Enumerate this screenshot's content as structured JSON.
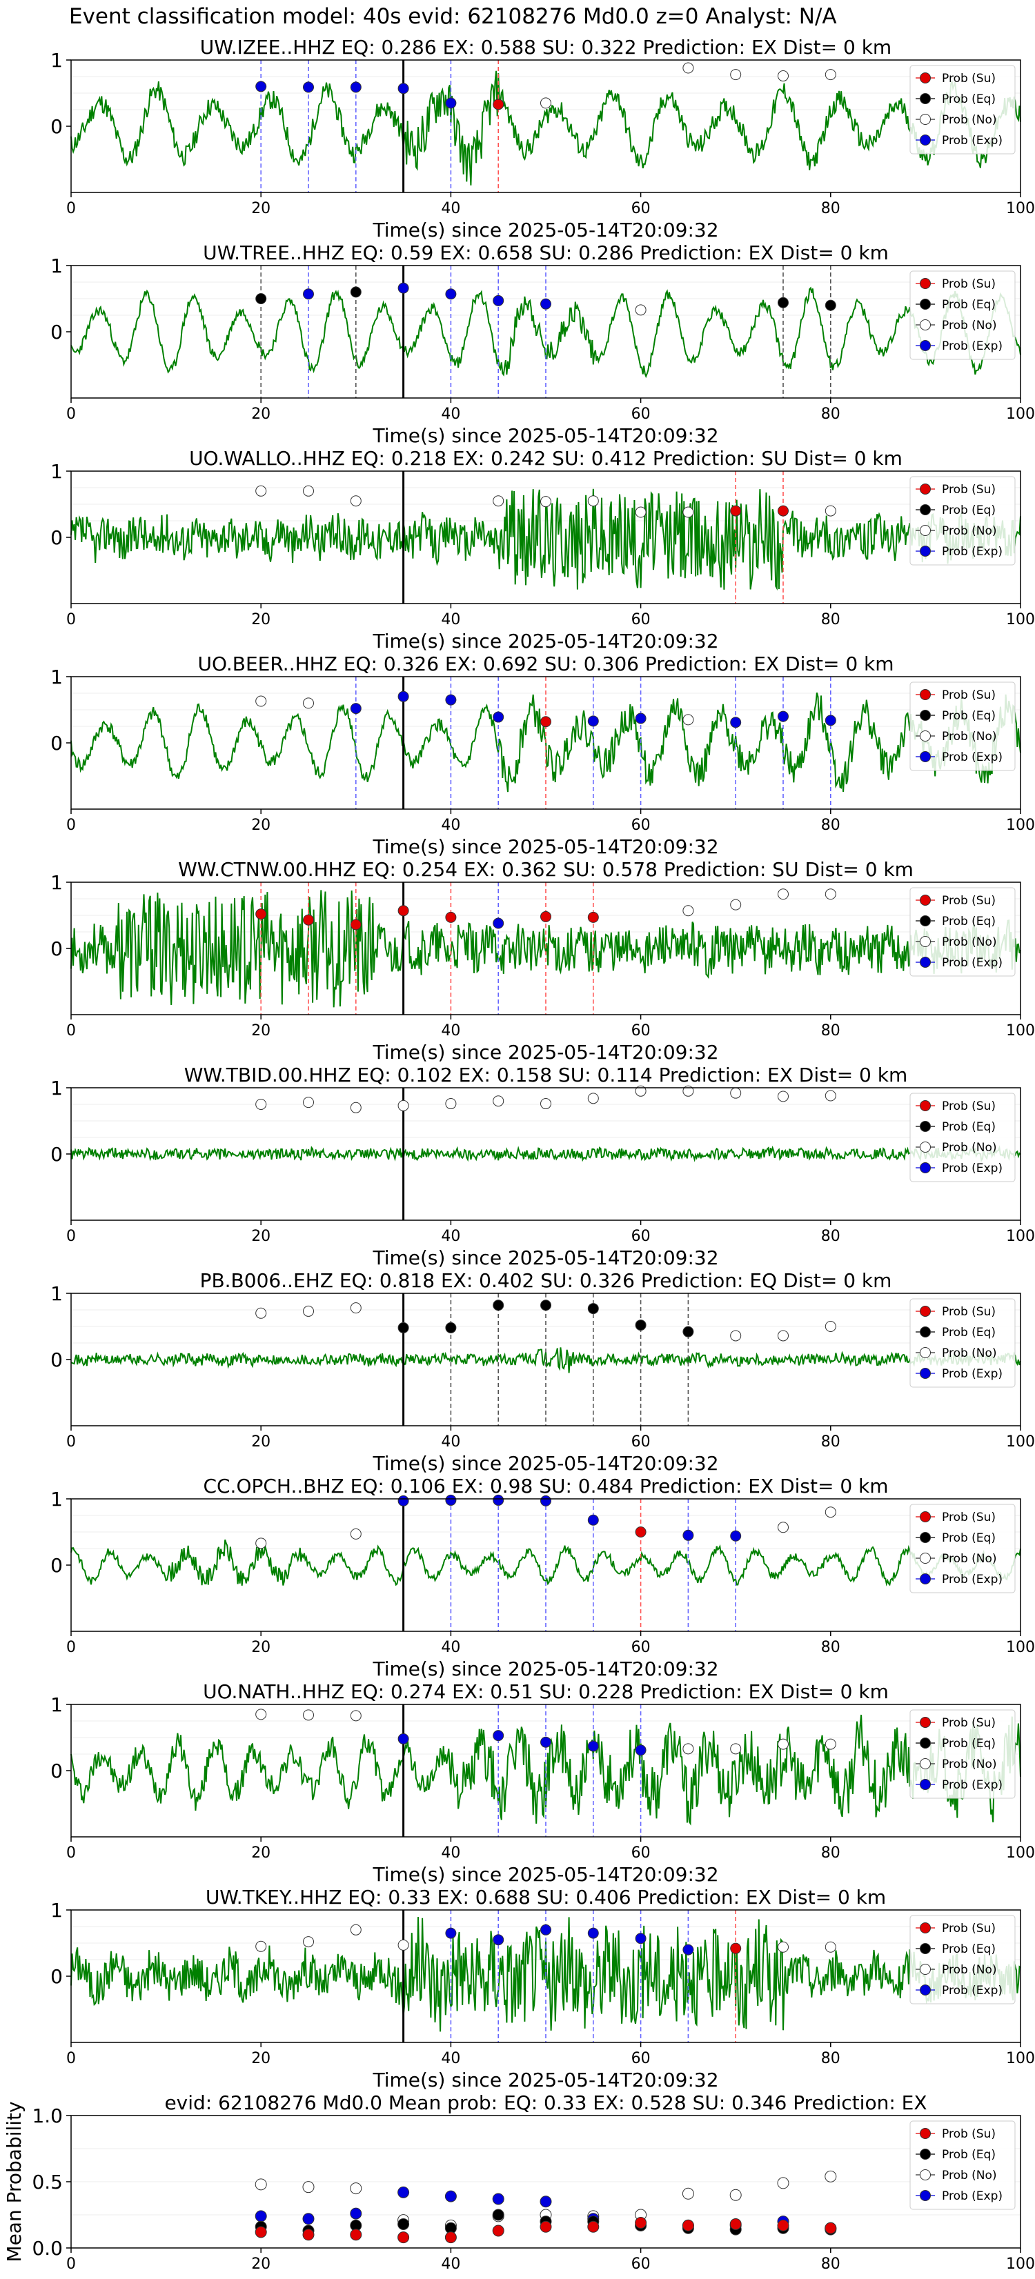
{
  "figure_title": "Event classification model: 40s evid: 62108276 Md0.0 z=0 Analyst: N/A",
  "legend_labels": [
    "Prob (Su)",
    "Prob (Eq)",
    "Prob (No)",
    "Prob (Exp)"
  ],
  "colors": {
    "trace": "#008000",
    "su": "#e00000",
    "eq": "#000000",
    "no": "#ffffff",
    "exp": "#0000dd"
  },
  "chart_data": [
    {
      "type": "line",
      "title": "UW.IZEE..HHZ   EQ: 0.286  EX: 0.588  SU: 0.322   Prediction: EX    Dist= 0 km",
      "xlabel": "Time(s) since 2025-05-14T20:09:32",
      "xlim": [
        0,
        100
      ],
      "ylim": [
        -1,
        1
      ],
      "xticks": [
        0,
        20,
        40,
        60,
        80,
        100
      ],
      "yticks": [
        0,
        1
      ],
      "onset": 35,
      "trace": {
        "seed": 11,
        "amp": 0.55,
        "noise": 0.15,
        "burst": [
          35,
          45
        ],
        "period": 6
      },
      "markers": [
        {
          "x": 20,
          "y": 0.6,
          "cls": "exp"
        },
        {
          "x": 25,
          "y": 0.59,
          "cls": "exp"
        },
        {
          "x": 30,
          "y": 0.59,
          "cls": "exp"
        },
        {
          "x": 35,
          "y": 0.57,
          "cls": "exp"
        },
        {
          "x": 40,
          "y": 0.35,
          "cls": "exp"
        },
        {
          "x": 45,
          "y": 0.33,
          "cls": "su"
        },
        {
          "x": 50,
          "y": 0.35,
          "cls": "no"
        },
        {
          "x": 65,
          "y": 0.88,
          "cls": "no"
        },
        {
          "x": 70,
          "y": 0.78,
          "cls": "no"
        },
        {
          "x": 75,
          "y": 0.76,
          "cls": "no"
        },
        {
          "x": 80,
          "y": 0.78,
          "cls": "no"
        }
      ]
    },
    {
      "type": "line",
      "title": "UW.TREE..HHZ   EQ: 0.59  EX: 0.658  SU: 0.286   Prediction: EX    Dist= 0 km",
      "xlabel": "Time(s) since 2025-05-14T20:09:32",
      "xlim": [
        0,
        100
      ],
      "ylim": [
        -1,
        1
      ],
      "xticks": [
        0,
        20,
        40,
        60,
        80,
        100
      ],
      "yticks": [
        0,
        1
      ],
      "onset": 35,
      "trace": {
        "seed": 23,
        "amp": 0.6,
        "noise": 0.08,
        "burst": [
          45,
          55
        ],
        "period": 5
      },
      "markers": [
        {
          "x": 20,
          "y": 0.5,
          "cls": "eq"
        },
        {
          "x": 25,
          "y": 0.57,
          "cls": "exp"
        },
        {
          "x": 30,
          "y": 0.6,
          "cls": "eq"
        },
        {
          "x": 35,
          "y": 0.66,
          "cls": "exp"
        },
        {
          "x": 40,
          "y": 0.57,
          "cls": "exp"
        },
        {
          "x": 45,
          "y": 0.47,
          "cls": "exp"
        },
        {
          "x": 50,
          "y": 0.42,
          "cls": "exp"
        },
        {
          "x": 60,
          "y": 0.33,
          "cls": "no"
        },
        {
          "x": 75,
          "y": 0.44,
          "cls": "eq"
        },
        {
          "x": 80,
          "y": 0.4,
          "cls": "eq"
        }
      ]
    },
    {
      "type": "line",
      "title": "UO.WALLO..HHZ   EQ: 0.218  EX: 0.242  SU: 0.412   Prediction: SU    Dist= 0 km",
      "xlabel": "Time(s) since 2025-05-14T20:09:32",
      "xlim": [
        0,
        100
      ],
      "ylim": [
        -1,
        1
      ],
      "xticks": [
        0,
        20,
        40,
        60,
        80,
        100
      ],
      "yticks": [
        0,
        1
      ],
      "onset": 35,
      "trace": {
        "seed": 37,
        "amp": 0.12,
        "noise": 0.3,
        "burst": [
          45,
          75
        ],
        "period": 3
      },
      "markers": [
        {
          "x": 20,
          "y": 0.7,
          "cls": "no"
        },
        {
          "x": 25,
          "y": 0.7,
          "cls": "no"
        },
        {
          "x": 30,
          "y": 0.55,
          "cls": "no"
        },
        {
          "x": 45,
          "y": 0.55,
          "cls": "no"
        },
        {
          "x": 50,
          "y": 0.54,
          "cls": "no"
        },
        {
          "x": 55,
          "y": 0.55,
          "cls": "no"
        },
        {
          "x": 60,
          "y": 0.38,
          "cls": "no"
        },
        {
          "x": 65,
          "y": 0.38,
          "cls": "no"
        },
        {
          "x": 70,
          "y": 0.4,
          "cls": "su"
        },
        {
          "x": 75,
          "y": 0.4,
          "cls": "su"
        },
        {
          "x": 80,
          "y": 0.4,
          "cls": "no"
        }
      ]
    },
    {
      "type": "line",
      "title": "UO.BEER..HHZ   EQ: 0.326  EX: 0.692  SU: 0.306   Prediction: EX    Dist= 0 km",
      "xlabel": "Time(s) since 2025-05-14T20:09:32",
      "xlim": [
        0,
        100
      ],
      "ylim": [
        -1,
        1
      ],
      "xticks": [
        0,
        20,
        40,
        60,
        80,
        100
      ],
      "yticks": [
        0,
        1
      ],
      "onset": 35,
      "trace": {
        "seed": 41,
        "amp": 0.55,
        "noise": 0.1,
        "burst": [
          45,
          100
        ],
        "period": 5
      },
      "markers": [
        {
          "x": 20,
          "y": 0.63,
          "cls": "no"
        },
        {
          "x": 25,
          "y": 0.6,
          "cls": "no"
        },
        {
          "x": 30,
          "y": 0.52,
          "cls": "exp"
        },
        {
          "x": 35,
          "y": 0.7,
          "cls": "exp"
        },
        {
          "x": 40,
          "y": 0.65,
          "cls": "exp"
        },
        {
          "x": 45,
          "y": 0.39,
          "cls": "exp"
        },
        {
          "x": 50,
          "y": 0.32,
          "cls": "su"
        },
        {
          "x": 55,
          "y": 0.33,
          "cls": "exp"
        },
        {
          "x": 60,
          "y": 0.37,
          "cls": "exp"
        },
        {
          "x": 65,
          "y": 0.35,
          "cls": "no"
        },
        {
          "x": 70,
          "y": 0.31,
          "cls": "exp"
        },
        {
          "x": 75,
          "y": 0.4,
          "cls": "exp"
        },
        {
          "x": 80,
          "y": 0.34,
          "cls": "exp"
        }
      ]
    },
    {
      "type": "line",
      "title": "WW.CTNW.00.HHZ   EQ: 0.254  EX: 0.362  SU: 0.578   Prediction: SU    Dist= 0 km",
      "xlabel": "Time(s) since 2025-05-14T20:09:32",
      "xlim": [
        0,
        100
      ],
      "ylim": [
        -1,
        1
      ],
      "xticks": [
        0,
        20,
        40,
        60,
        80,
        100
      ],
      "yticks": [
        0,
        1
      ],
      "onset": 35,
      "trace": {
        "seed": 53,
        "amp": 0.1,
        "noise": 0.35,
        "burst": [
          5,
          32
        ],
        "period": 3
      },
      "markers": [
        {
          "x": 20,
          "y": 0.52,
          "cls": "su"
        },
        {
          "x": 25,
          "y": 0.43,
          "cls": "su"
        },
        {
          "x": 30,
          "y": 0.36,
          "cls": "su"
        },
        {
          "x": 35,
          "y": 0.57,
          "cls": "su"
        },
        {
          "x": 40,
          "y": 0.47,
          "cls": "su"
        },
        {
          "x": 45,
          "y": 0.38,
          "cls": "exp"
        },
        {
          "x": 50,
          "y": 0.48,
          "cls": "su"
        },
        {
          "x": 55,
          "y": 0.47,
          "cls": "su"
        },
        {
          "x": 65,
          "y": 0.57,
          "cls": "no"
        },
        {
          "x": 70,
          "y": 0.66,
          "cls": "no"
        },
        {
          "x": 75,
          "y": 0.82,
          "cls": "no"
        },
        {
          "x": 80,
          "y": 0.82,
          "cls": "no"
        }
      ]
    },
    {
      "type": "line",
      "title": "WW.TBID.00.HHZ   EQ: 0.102  EX: 0.158  SU: 0.114   Prediction: EX    Dist= 0 km",
      "xlabel": "Time(s) since 2025-05-14T20:09:32",
      "xlim": [
        0,
        100
      ],
      "ylim": [
        -1,
        1
      ],
      "xticks": [
        0,
        20,
        40,
        60,
        80,
        100
      ],
      "yticks": [
        0,
        1
      ],
      "onset": 35,
      "trace": {
        "seed": 61,
        "amp": 0.02,
        "noise": 0.08,
        "burst": [
          0,
          0
        ],
        "period": 3
      },
      "markers": [
        {
          "x": 20,
          "y": 0.75,
          "cls": "no"
        },
        {
          "x": 25,
          "y": 0.78,
          "cls": "no"
        },
        {
          "x": 30,
          "y": 0.7,
          "cls": "no"
        },
        {
          "x": 35,
          "y": 0.73,
          "cls": "no"
        },
        {
          "x": 40,
          "y": 0.76,
          "cls": "no"
        },
        {
          "x": 45,
          "y": 0.8,
          "cls": "no"
        },
        {
          "x": 50,
          "y": 0.76,
          "cls": "no"
        },
        {
          "x": 55,
          "y": 0.84,
          "cls": "no"
        },
        {
          "x": 60,
          "y": 0.95,
          "cls": "no"
        },
        {
          "x": 65,
          "y": 0.95,
          "cls": "no"
        },
        {
          "x": 70,
          "y": 0.92,
          "cls": "no"
        },
        {
          "x": 75,
          "y": 0.87,
          "cls": "no"
        },
        {
          "x": 80,
          "y": 0.88,
          "cls": "no"
        }
      ]
    },
    {
      "type": "line",
      "title": "PB.B006..EHZ   EQ: 0.818  EX: 0.402  SU: 0.326   Prediction: EQ    Dist= 0 km",
      "xlabel": "Time(s) since 2025-05-14T20:09:32",
      "xlim": [
        0,
        100
      ],
      "ylim": [
        -1,
        1
      ],
      "xticks": [
        0,
        20,
        40,
        60,
        80,
        100
      ],
      "yticks": [
        0,
        1
      ],
      "onset": 35,
      "trace": {
        "seed": 71,
        "amp": 0.03,
        "noise": 0.08,
        "burst": [
          49,
          53
        ],
        "period": 3
      },
      "markers": [
        {
          "x": 20,
          "y": 0.7,
          "cls": "no"
        },
        {
          "x": 25,
          "y": 0.73,
          "cls": "no"
        },
        {
          "x": 30,
          "y": 0.78,
          "cls": "no"
        },
        {
          "x": 35,
          "y": 0.48,
          "cls": "eq"
        },
        {
          "x": 40,
          "y": 0.48,
          "cls": "eq"
        },
        {
          "x": 45,
          "y": 0.82,
          "cls": "eq"
        },
        {
          "x": 50,
          "y": 0.82,
          "cls": "eq"
        },
        {
          "x": 55,
          "y": 0.77,
          "cls": "eq"
        },
        {
          "x": 60,
          "y": 0.52,
          "cls": "eq"
        },
        {
          "x": 65,
          "y": 0.42,
          "cls": "eq"
        },
        {
          "x": 70,
          "y": 0.36,
          "cls": "no"
        },
        {
          "x": 75,
          "y": 0.36,
          "cls": "no"
        },
        {
          "x": 80,
          "y": 0.5,
          "cls": "no"
        }
      ]
    },
    {
      "type": "line",
      "title": "CC.OPCH..BHZ   EQ: 0.106  EX: 0.98  SU: 0.484   Prediction: EX    Dist= 0 km",
      "xlabel": "Time(s) since 2025-05-14T20:09:32",
      "xlim": [
        0,
        100
      ],
      "ylim": [
        -1,
        1
      ],
      "xticks": [
        0,
        20,
        40,
        60,
        80,
        100
      ],
      "yticks": [
        0,
        1
      ],
      "onset": 35,
      "trace": {
        "seed": 83,
        "amp": 0.25,
        "noise": 0.06,
        "burst": [
          10,
          25
        ],
        "period": 4
      },
      "markers": [
        {
          "x": 20,
          "y": 0.33,
          "cls": "no"
        },
        {
          "x": 30,
          "y": 0.47,
          "cls": "no"
        },
        {
          "x": 35,
          "y": 0.97,
          "cls": "exp"
        },
        {
          "x": 40,
          "y": 0.98,
          "cls": "exp"
        },
        {
          "x": 45,
          "y": 0.98,
          "cls": "exp"
        },
        {
          "x": 50,
          "y": 0.97,
          "cls": "exp"
        },
        {
          "x": 55,
          "y": 0.68,
          "cls": "exp"
        },
        {
          "x": 60,
          "y": 0.5,
          "cls": "su"
        },
        {
          "x": 65,
          "y": 0.45,
          "cls": "exp"
        },
        {
          "x": 70,
          "y": 0.44,
          "cls": "exp"
        },
        {
          "x": 75,
          "y": 0.57,
          "cls": "no"
        },
        {
          "x": 80,
          "y": 0.8,
          "cls": "no"
        }
      ]
    },
    {
      "type": "line",
      "title": "UO.NATH..HHZ   EQ: 0.274  EX: 0.51  SU: 0.228   Prediction: EX    Dist= 0 km",
      "xlabel": "Time(s) since 2025-05-14T20:09:32",
      "xlim": [
        0,
        100
      ],
      "ylim": [
        -1,
        1
      ],
      "xticks": [
        0,
        20,
        40,
        60,
        80,
        100
      ],
      "yticks": [
        0,
        1
      ],
      "onset": 35,
      "trace": {
        "seed": 97,
        "amp": 0.45,
        "noise": 0.18,
        "burst": [
          40,
          100
        ],
        "period": 4
      },
      "markers": [
        {
          "x": 20,
          "y": 0.85,
          "cls": "no"
        },
        {
          "x": 25,
          "y": 0.84,
          "cls": "no"
        },
        {
          "x": 30,
          "y": 0.83,
          "cls": "no"
        },
        {
          "x": 35,
          "y": 0.48,
          "cls": "exp"
        },
        {
          "x": 45,
          "y": 0.53,
          "cls": "exp"
        },
        {
          "x": 50,
          "y": 0.43,
          "cls": "exp"
        },
        {
          "x": 55,
          "y": 0.37,
          "cls": "exp"
        },
        {
          "x": 60,
          "y": 0.31,
          "cls": "exp"
        },
        {
          "x": 65,
          "y": 0.33,
          "cls": "no"
        },
        {
          "x": 70,
          "y": 0.33,
          "cls": "no"
        },
        {
          "x": 75,
          "y": 0.4,
          "cls": "no"
        },
        {
          "x": 80,
          "y": 0.4,
          "cls": "no"
        }
      ]
    },
    {
      "type": "line",
      "title": "UW.TKEY..HHZ   EQ: 0.33  EX: 0.688  SU: 0.406   Prediction: EX    Dist= 0 km",
      "xlabel": "Time(s) since 2025-05-14T20:09:32",
      "xlim": [
        0,
        100
      ],
      "ylim": [
        -1,
        1
      ],
      "xticks": [
        0,
        20,
        40,
        60,
        80,
        100
      ],
      "yticks": [
        0,
        1
      ],
      "onset": 35,
      "trace": {
        "seed": 101,
        "amp": 0.2,
        "noise": 0.3,
        "burst": [
          35,
          75
        ],
        "period": 4
      },
      "markers": [
        {
          "x": 20,
          "y": 0.45,
          "cls": "no"
        },
        {
          "x": 25,
          "y": 0.52,
          "cls": "no"
        },
        {
          "x": 30,
          "y": 0.7,
          "cls": "no"
        },
        {
          "x": 35,
          "y": 0.47,
          "cls": "no"
        },
        {
          "x": 40,
          "y": 0.65,
          "cls": "exp"
        },
        {
          "x": 45,
          "y": 0.55,
          "cls": "exp"
        },
        {
          "x": 50,
          "y": 0.7,
          "cls": "exp"
        },
        {
          "x": 55,
          "y": 0.65,
          "cls": "exp"
        },
        {
          "x": 60,
          "y": 0.57,
          "cls": "exp"
        },
        {
          "x": 65,
          "y": 0.4,
          "cls": "exp"
        },
        {
          "x": 70,
          "y": 0.42,
          "cls": "su"
        },
        {
          "x": 75,
          "y": 0.44,
          "cls": "no"
        },
        {
          "x": 80,
          "y": 0.44,
          "cls": "no"
        }
      ]
    },
    {
      "type": "scatter",
      "title": "evid: 62108276  Md0.0   Mean prob:   EQ: 0.33  EX: 0.528  SU: 0.346   Prediction: EX",
      "ylabel": "Mean Probability",
      "xlim": [
        0,
        100
      ],
      "ylim": [
        0,
        1
      ],
      "xticks": [
        0,
        20,
        40,
        60,
        80,
        100
      ],
      "yticks": [
        0.0,
        0.5,
        1.0
      ],
      "ytick_labels": [
        "0.0",
        "0.5",
        "1.0"
      ],
      "x": [
        20,
        25,
        30,
        35,
        40,
        45,
        50,
        55,
        60,
        65,
        70,
        75,
        80
      ],
      "series": [
        {
          "name": "Prob (No)",
          "cls": "no",
          "values": [
            0.48,
            0.46,
            0.45,
            0.21,
            0.17,
            0.24,
            0.25,
            0.24,
            0.25,
            0.41,
            0.4,
            0.49,
            0.54
          ]
        },
        {
          "name": "Prob (Exp)",
          "cls": "exp",
          "values": [
            0.24,
            0.22,
            0.26,
            0.42,
            0.39,
            0.37,
            0.35,
            0.22,
            0.17,
            0.17,
            0.17,
            0.2,
            0.15
          ]
        },
        {
          "name": "Prob (Eq)",
          "cls": "eq",
          "values": [
            0.16,
            0.13,
            0.17,
            0.18,
            0.15,
            0.25,
            0.2,
            0.2,
            0.17,
            0.15,
            0.14,
            0.15,
            0.14
          ]
        },
        {
          "name": "Prob (Su)",
          "cls": "su",
          "values": [
            0.12,
            0.1,
            0.1,
            0.08,
            0.08,
            0.13,
            0.16,
            0.16,
            0.19,
            0.17,
            0.18,
            0.17,
            0.15
          ]
        }
      ]
    }
  ]
}
